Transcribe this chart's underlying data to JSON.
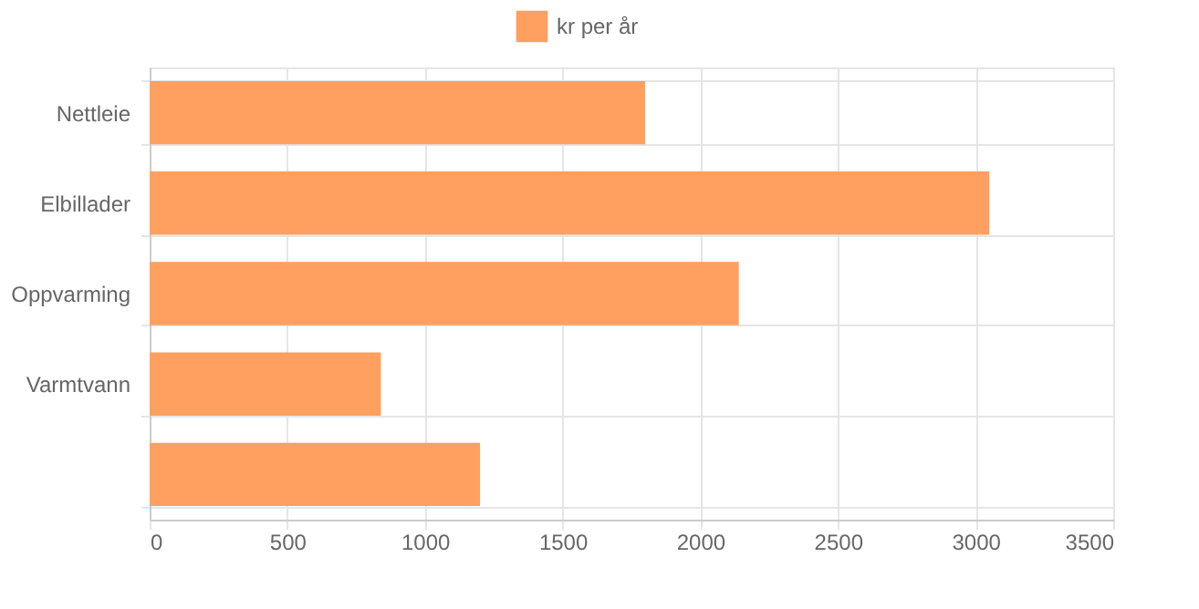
{
  "chart_data": {
    "type": "bar",
    "orientation": "horizontal",
    "categories": [
      "Nettleie",
      "Elbillader",
      "Oppvarming",
      "Varmtvann",
      null
    ],
    "series": [
      {
        "name": "kr per år",
        "color": "#ffa060",
        "values": [
          1800,
          3050,
          2140,
          840,
          1200
        ]
      }
    ],
    "xlim": [
      0,
      3500
    ],
    "xticks": [
      0,
      500,
      1000,
      1500,
      2000,
      2500,
      3000,
      3500
    ],
    "grid": true,
    "legend": "top"
  }
}
